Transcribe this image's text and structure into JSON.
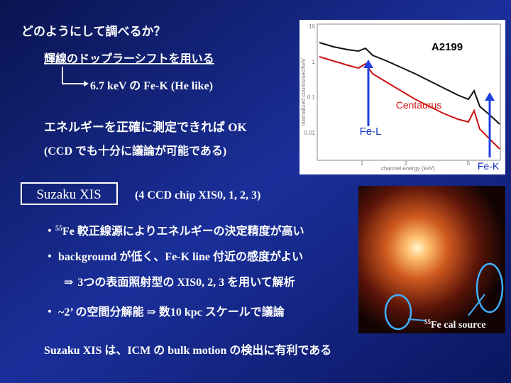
{
  "title": "どのようにして調べるか？",
  "method": "輝線のドップラーシフトを用いる",
  "method_detail": "6.7 keV の Fe-K (He like)",
  "condition": "エネルギーを正確に測定できれば OK",
  "condition_note": "(CCD でも十分に議論が可能である)",
  "instrument": {
    "name": "Suzaku XIS",
    "note": "(4 CCD chip XIS0, 1, 2, 3)"
  },
  "bullets": [
    {
      "marker": "・",
      "superscript": "55",
      "text": "Fe 較正線源によりエネルギーの決定精度が高い"
    },
    {
      "marker": "・",
      "text": "background が低く、Fe-K line 付近の感度がよい"
    },
    {
      "marker": "⇒",
      "text": "3つの表面照射型の XIS0, 2, 3 を用いて解析"
    },
    {
      "marker": "・",
      "text": "~2’ の空間分解能 ⇒ 数10 kpc スケールで議論"
    }
  ],
  "conclusion": "Suzaku XIS は、ICM の bulk motion の検出に有利である",
  "spectrum": {
    "labels": {
      "top": "A2199",
      "middle": "Centaurus",
      "fe_l": "Fe-L",
      "fe_k": "Fe-K"
    },
    "y_axis": "normalized counts/sec/keV",
    "x_axis": "channel energy (keV)",
    "yticks": [
      "10",
      "1",
      "0.1",
      "0.01"
    ],
    "xticks": [
      "1",
      "2",
      "5"
    ]
  },
  "image": {
    "caption_superscript": "55",
    "caption": "Fe cal source"
  }
}
